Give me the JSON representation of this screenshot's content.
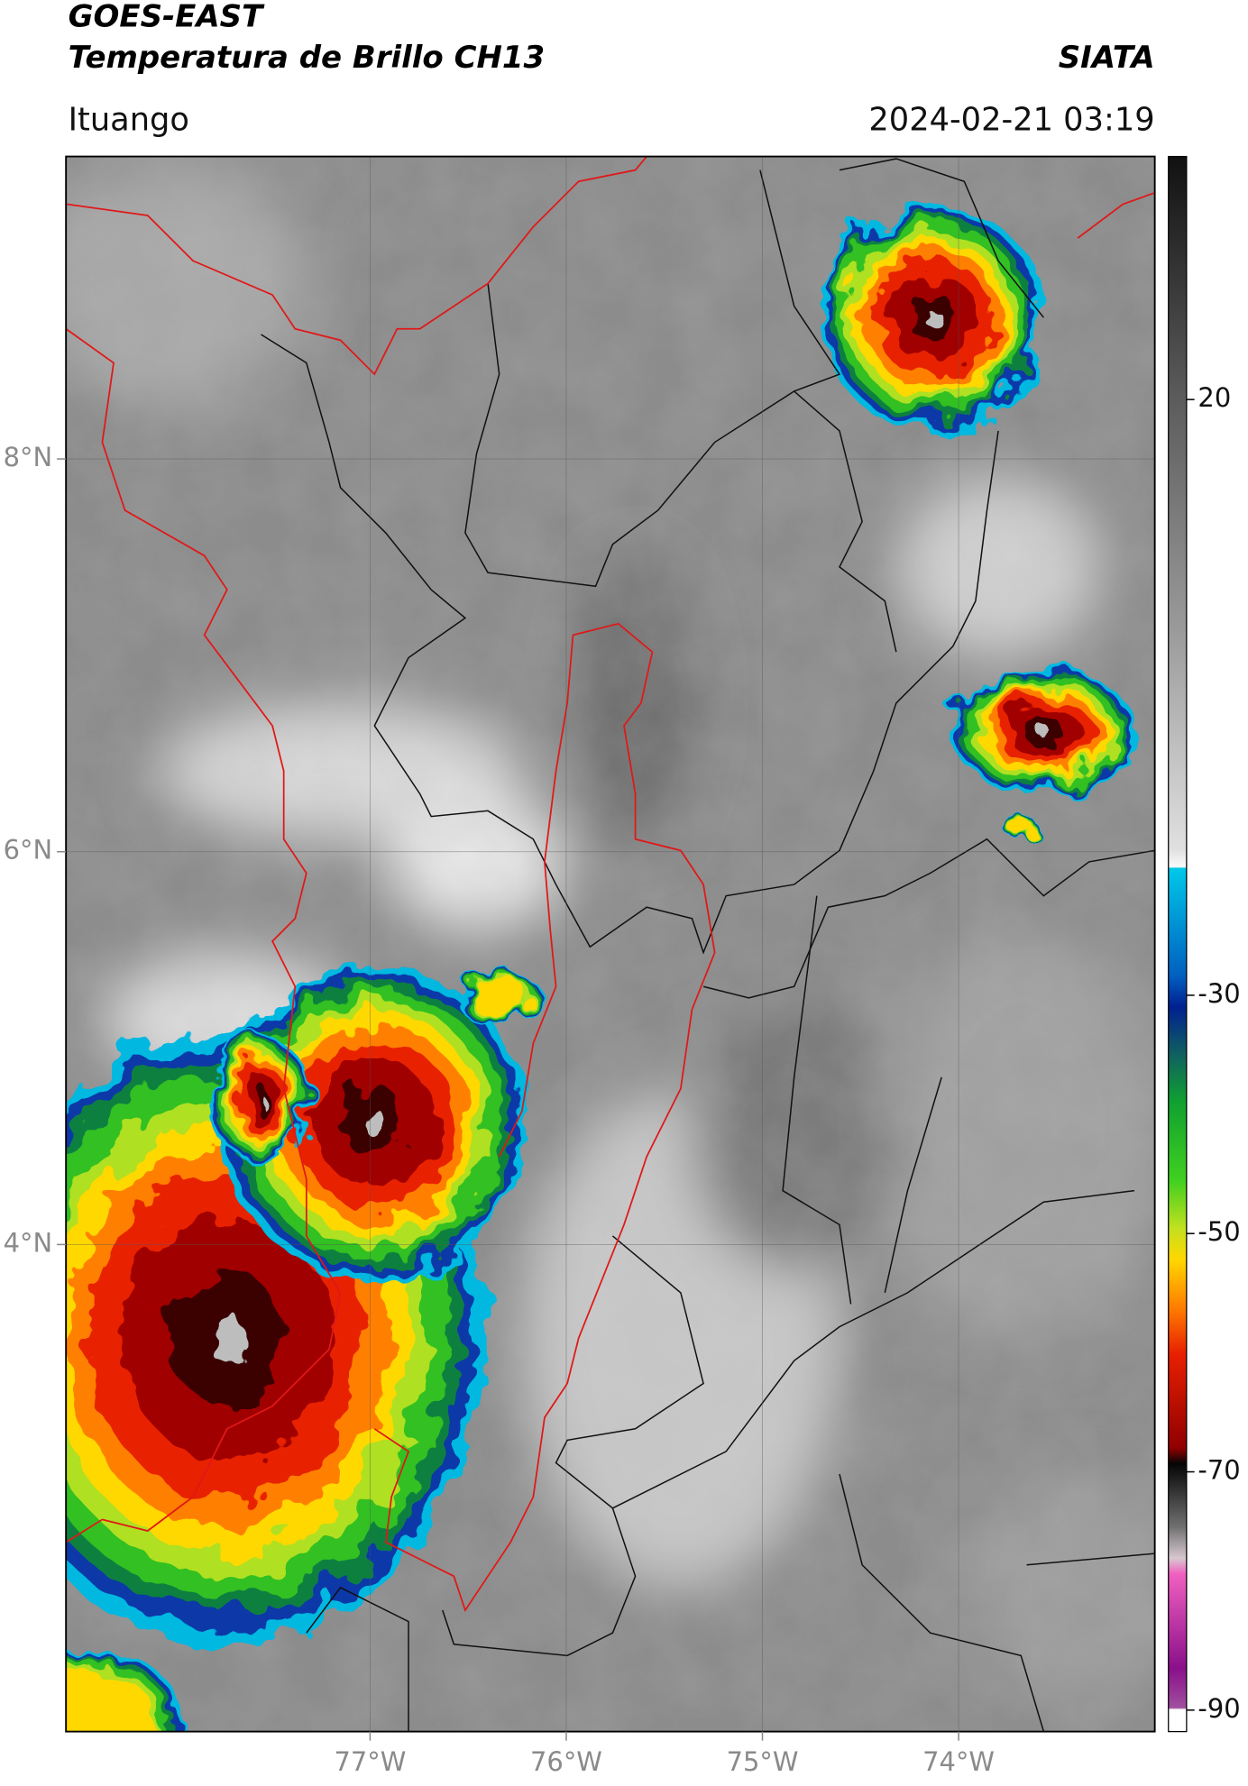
{
  "header": {
    "title_line1": "GOES-EAST",
    "title_line2": "Temperatura de Brillo CH13",
    "source": "SIATA",
    "region": "Ituango",
    "datetime": "2024-02-21 03:19"
  },
  "map": {
    "xlim": [
      -78.55,
      -73.0
    ],
    "ylim": [
      1.52,
      9.54
    ],
    "xticks": [
      {
        "value": -77,
        "label": "77°W"
      },
      {
        "value": -76,
        "label": "76°W"
      },
      {
        "value": -75,
        "label": "75°W"
      },
      {
        "value": -74,
        "label": "74°W"
      }
    ],
    "yticks": [
      {
        "value": 8,
        "label": "8°N"
      },
      {
        "value": 6,
        "label": "6°N"
      },
      {
        "value": 4,
        "label": "4°N"
      }
    ],
    "grid": true
  },
  "colorbar": {
    "clim": [
      -91.8,
      40.4
    ],
    "ticks": [
      20,
      -30,
      -50,
      -70,
      -90
    ]
  }
}
